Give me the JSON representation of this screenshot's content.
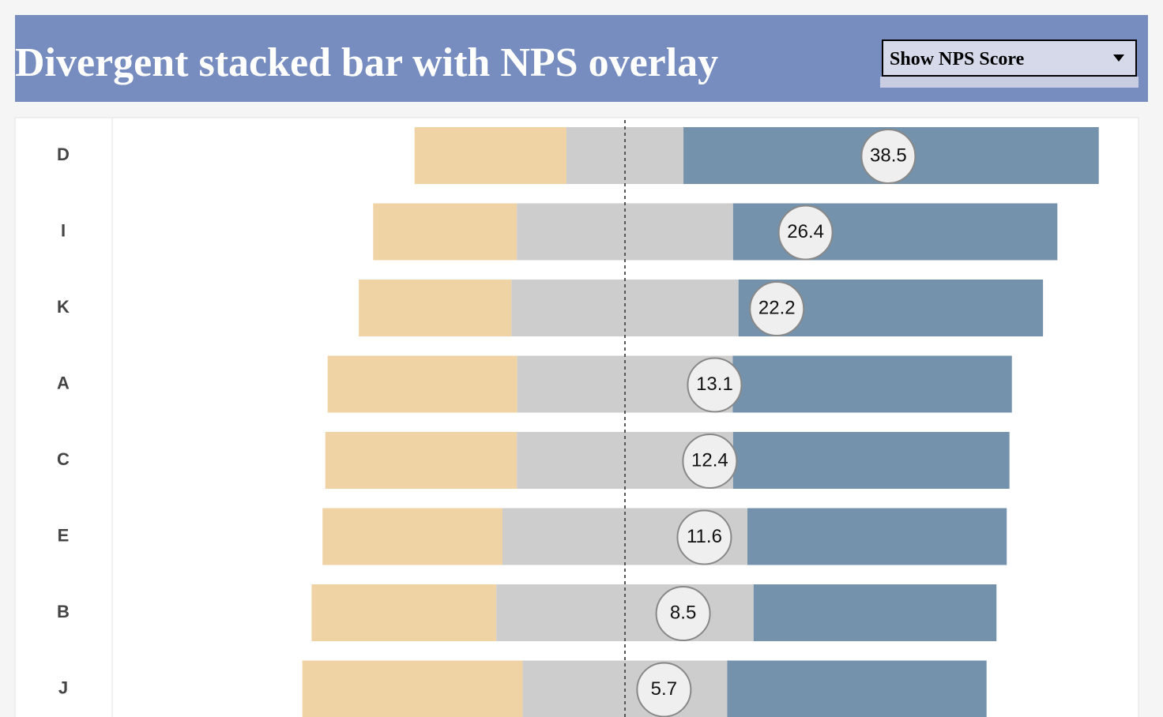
{
  "control": {
    "label": "Show NPS Score"
  },
  "chart_data": {
    "type": "divergent-bar",
    "title": "Divergent stacked bar with NPS overlay",
    "categories": [
      "D",
      "I",
      "K",
      "A",
      "C",
      "E",
      "B",
      "J"
    ],
    "series": [
      {
        "color": "#efd3a5",
        "values": [
          22.2,
          21.0,
          22.3,
          27.7,
          28.0,
          26.3,
          27.0,
          32.2
        ]
      },
      {
        "color": "#cdcdcd",
        "values": [
          17.1,
          31.6,
          33.2,
          31.5,
          31.6,
          35.8,
          37.6,
          29.9
        ]
      },
      {
        "color": "#7492ab",
        "values": [
          60.7,
          47.4,
          44.5,
          40.8,
          40.4,
          37.9,
          35.5,
          37.9
        ]
      }
    ],
    "nps": [
      38.5,
      26.4,
      22.2,
      13.1,
      12.4,
      11.6,
      8.5,
      5.7
    ]
  }
}
